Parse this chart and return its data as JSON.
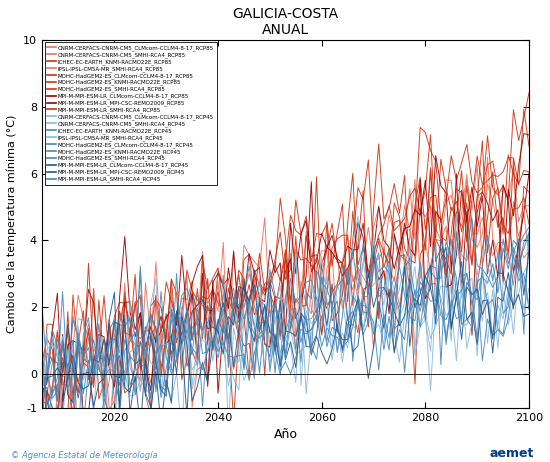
{
  "title": "GALICIA-COSTA",
  "subtitle": "ANUAL",
  "xlabel": "Año",
  "ylabel": "Cambio de la temperatura mínima (°C)",
  "xlim": [
    2006,
    2100
  ],
  "ylim": [
    -1,
    10
  ],
  "yticks": [
    -1,
    0,
    2,
    4,
    6,
    8,
    10
  ],
  "xticks": [
    2020,
    2040,
    2060,
    2080,
    2100
  ],
  "x_start": 2006,
  "x_end": 2100,
  "legend_rcp85": [
    "CNRM-CERFACS-CNRM-CM5_CLMcom-CCLM4-8-17_RCP85",
    "CNRM-CERFACS-CNRM-CM5_SMHI-RCA4_RCP85",
    "ICHEC-EC-EARTH_KNMI-RACMO22E_RCP85",
    "IPSL-IPSL-CM5A-MR_SMHI-RCA4_RCP85",
    "MOHC-HadGEM2-ES_CLMcom-CCLM4-8-17_RCP85",
    "MOHC-HadGEM2-ES_KNMI-RACMO22E_RCP85",
    "MOHC-HadGEM2-ES_SMHI-RCA4_RCP85",
    "MPI-M-MPI-ESM-LR_CLMcom-CCLM4-8-17_RCP85",
    "MPI-M-MPI-ESM-LR_MPI-CSC-REMO2009_RCP85",
    "MPI-M-MPI-ESM-LR_SMHI-RCA4_RCP85"
  ],
  "legend_rcp45": [
    "CNRM-CERFACS-CNRM-CM5_CLMcom-CCLM4-8-17_RCP45",
    "CNRM-CERFACS-CNRM-CM5_SMHI-RCA4_RCP45",
    "ICHEC-EC-EARTH_KNMI-RACMO22E_RCP45",
    "IPSL-IPSL-CM5A-MR_SMHI-RCA4_RCP45",
    "MOHC-HadGEM2-ES_CLMcom-CCLM4-8-17_RCP45",
    "MOHC-HadGEM2-ES_KNMI-RACMO22E_RCP45",
    "MOHC-HadGEM2-ES_SMHI-RCA4_RCP45",
    "MPI-M-MPI-ESM-LR_CLMcom-CCLM4-8-17_RCP45",
    "MPI-M-MPI-ESM-LR_MPI-CSC-REMO2009_RCP45",
    "MPI-M-MPI-ESM-LR_SMHI-RCA4_RCP45"
  ],
  "rcp85_colors": [
    "#E8735A",
    "#E8735A",
    "#CC3311",
    "#E8735A",
    "#CC3311",
    "#CC3311",
    "#CC3311",
    "#990000",
    "#990000",
    "#CC3311"
  ],
  "rcp45_colors": [
    "#88BBDD",
    "#88BBDD",
    "#4488BB",
    "#88BBDD",
    "#4488BB",
    "#4488BB",
    "#4488BB",
    "#225588",
    "#225588",
    "#4488BB"
  ],
  "rcp85_trends": [
    5.5,
    4.8,
    5.2,
    4.5,
    6.8,
    6.2,
    5.9,
    5.3,
    5.7,
    5.0
  ],
  "rcp45_trends": [
    3.0,
    2.6,
    2.8,
    2.4,
    3.6,
    3.3,
    3.1,
    2.7,
    2.9,
    2.5
  ],
  "noise_scale_85": 1.0,
  "noise_scale_45": 0.85,
  "footer_left": "© Agencia Estatal de Meteorología",
  "footer_color": "#4A90D9"
}
